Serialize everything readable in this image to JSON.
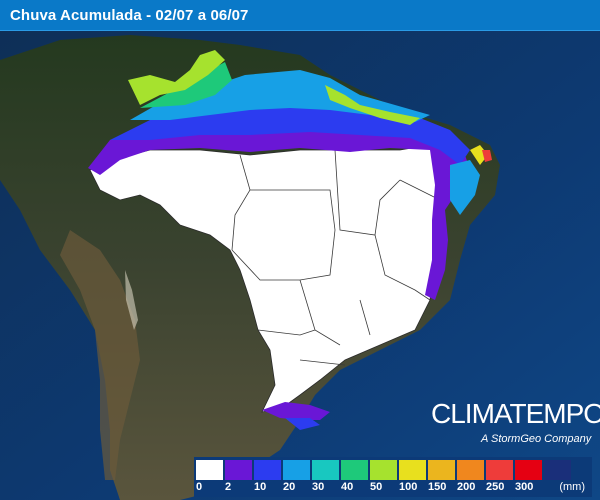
{
  "header": {
    "title": "Chuva Acumulada - 02/07 a 06/07"
  },
  "brand": {
    "name": "CLIMATEMPO",
    "tagline": "A StormGeo Company"
  },
  "legend": {
    "unit": "(mm)",
    "labels": [
      "0",
      "2",
      "10",
      "20",
      "30",
      "40",
      "50",
      "100",
      "150",
      "200",
      "250",
      "300"
    ],
    "colors": [
      "#ffffff",
      "#6a17d6",
      "#2c3cf0",
      "#17a0e6",
      "#18c8c0",
      "#1ec97a",
      "#a6e22e",
      "#e8e01e",
      "#ebb51e",
      "#f0871e",
      "#ee3c3a",
      "#e50012",
      "#1a2f7a"
    ]
  },
  "map": {
    "background": "#0d2d56",
    "land": "#3b4a38",
    "dry_color": "#ffffff"
  }
}
